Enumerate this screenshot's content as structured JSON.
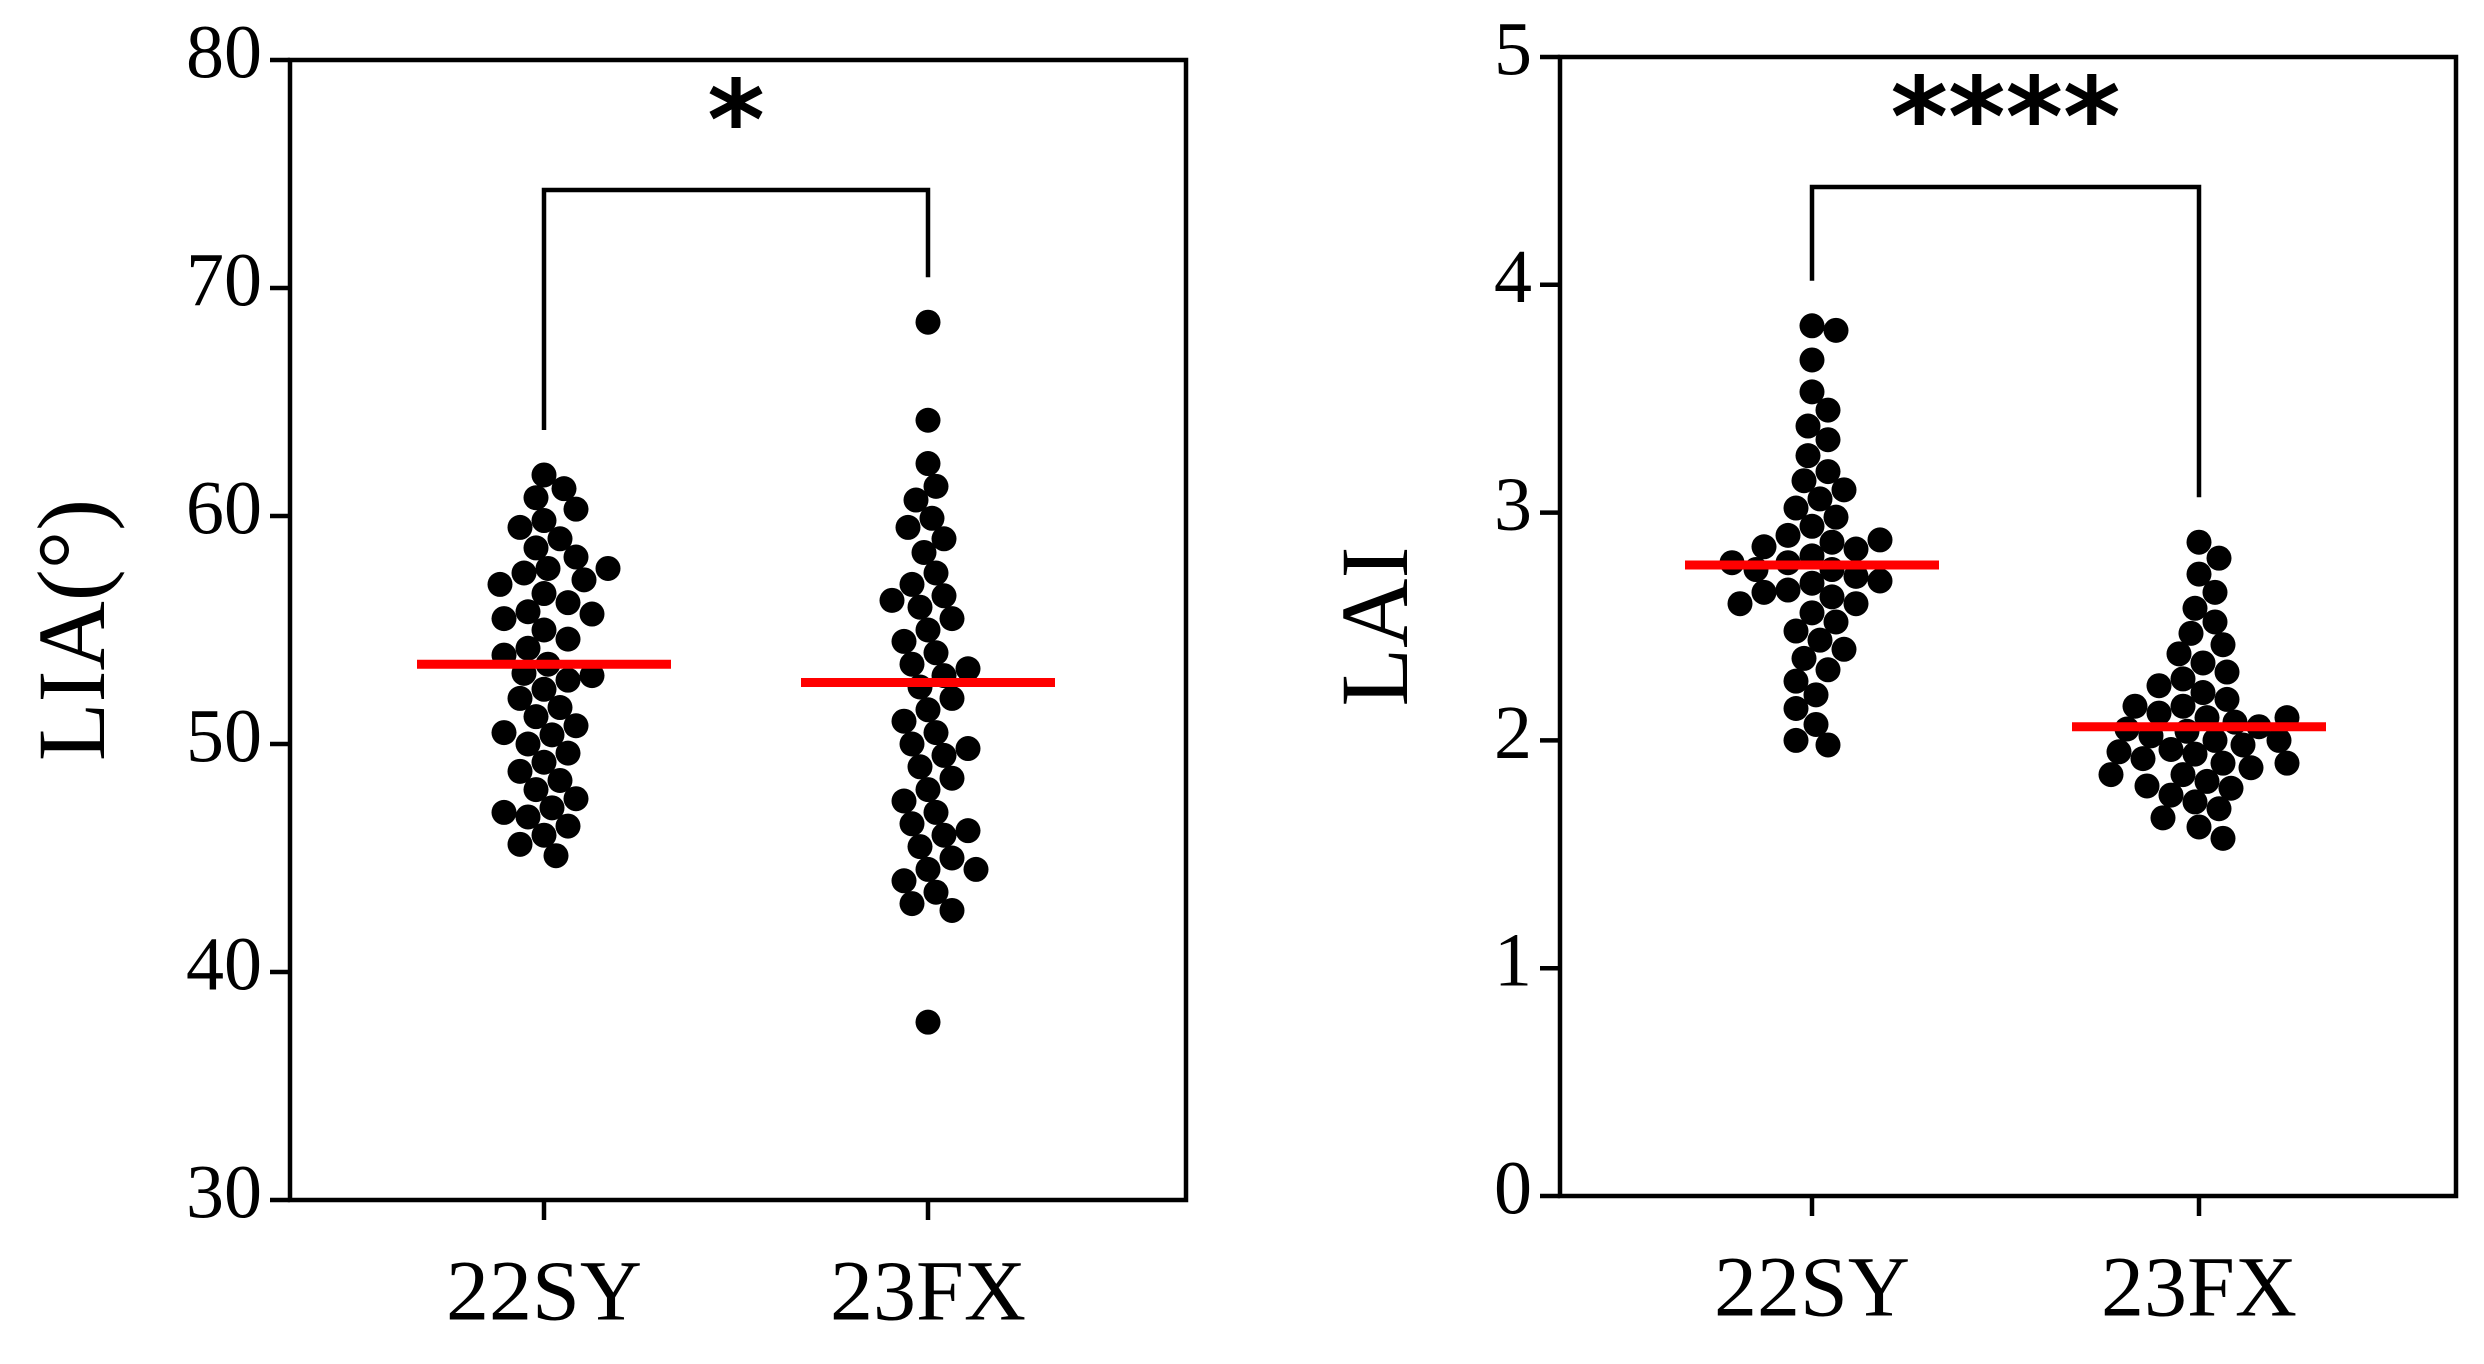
{
  "chart_data": [
    {
      "type": "swarm",
      "ylabel": "LIA(°)",
      "categories": [
        "22SY",
        "23FX"
      ],
      "color": "#000000",
      "mean_color": "#ff0000",
      "values": [
        [
          61.8,
          61.2,
          60.8,
          60.3,
          59.8,
          59.5,
          59.0,
          58.6,
          58.2,
          57.7,
          57.5,
          57.2,
          57.0,
          56.6,
          56.2,
          55.8,
          55.5,
          55.0,
          54.6,
          54.2,
          53.9,
          53.5,
          53.1,
          52.8,
          52.4,
          52.0,
          51.6,
          51.2,
          50.8,
          50.4,
          50.0,
          49.6,
          49.2,
          48.8,
          48.4,
          48.0,
          47.6,
          47.2,
          46.8,
          46.4,
          46.0,
          45.6,
          45.1,
          57.7,
          55.7,
          53.0,
          50.5,
          47.0
        ],
        [
          68.5,
          64.2,
          62.3,
          61.3,
          60.7,
          59.9,
          59.5,
          59.0,
          58.4,
          57.5,
          57.0,
          56.5,
          56.0,
          55.5,
          55.0,
          54.5,
          54.0,
          53.5,
          53.0,
          52.5,
          52.0,
          51.5,
          51.0,
          50.5,
          50.0,
          49.5,
          49.0,
          48.5,
          48.0,
          47.5,
          47.0,
          46.5,
          46.0,
          45.5,
          45.0,
          44.5,
          44.0,
          43.5,
          43.0,
          42.7,
          37.8,
          56.3,
          53.3,
          49.8,
          46.2,
          44.5
        ]
      ],
      "means": [
        53.5,
        52.7
      ],
      "significance": "*",
      "ylim": [
        30,
        80
      ],
      "yticks": [
        30,
        40,
        50,
        60,
        70,
        80
      ]
    },
    {
      "type": "swarm",
      "ylabel": "LAI",
      "categories": [
        "22SY",
        "23FX"
      ],
      "color": "#000000",
      "mean_color": "#ff0000",
      "values": [
        [
          3.82,
          3.8,
          3.67,
          3.53,
          3.45,
          3.38,
          3.32,
          3.25,
          3.18,
          3.14,
          3.1,
          3.06,
          3.02,
          2.98,
          2.94,
          2.9,
          2.87,
          2.84,
          2.81,
          2.78,
          2.75,
          2.72,
          2.69,
          2.66,
          2.63,
          2.6,
          2.56,
          2.52,
          2.48,
          2.44,
          2.4,
          2.36,
          2.31,
          2.26,
          2.2,
          2.14,
          2.07,
          2.0,
          1.98,
          2.85,
          2.75,
          2.7,
          2.65,
          2.78,
          2.88,
          2.6
        ],
        [
          2.87,
          2.8,
          2.73,
          2.65,
          2.58,
          2.52,
          2.47,
          2.42,
          2.38,
          2.34,
          2.3,
          2.27,
          2.24,
          2.21,
          2.18,
          2.15,
          2.12,
          2.1,
          2.08,
          2.06,
          2.04,
          2.02,
          2.0,
          1.98,
          1.96,
          1.94,
          1.92,
          1.9,
          1.88,
          1.85,
          1.82,
          1.79,
          1.76,
          1.73,
          1.7,
          1.66,
          1.62,
          1.57,
          2.05,
          2.0,
          1.95,
          1.9,
          2.1,
          2.15,
          1.85,
          1.8
        ]
      ],
      "means": [
        2.77,
        2.06
      ],
      "significance": "****",
      "ylim": [
        0,
        5
      ],
      "yticks": [
        0,
        1,
        2,
        3,
        4,
        5
      ]
    }
  ]
}
